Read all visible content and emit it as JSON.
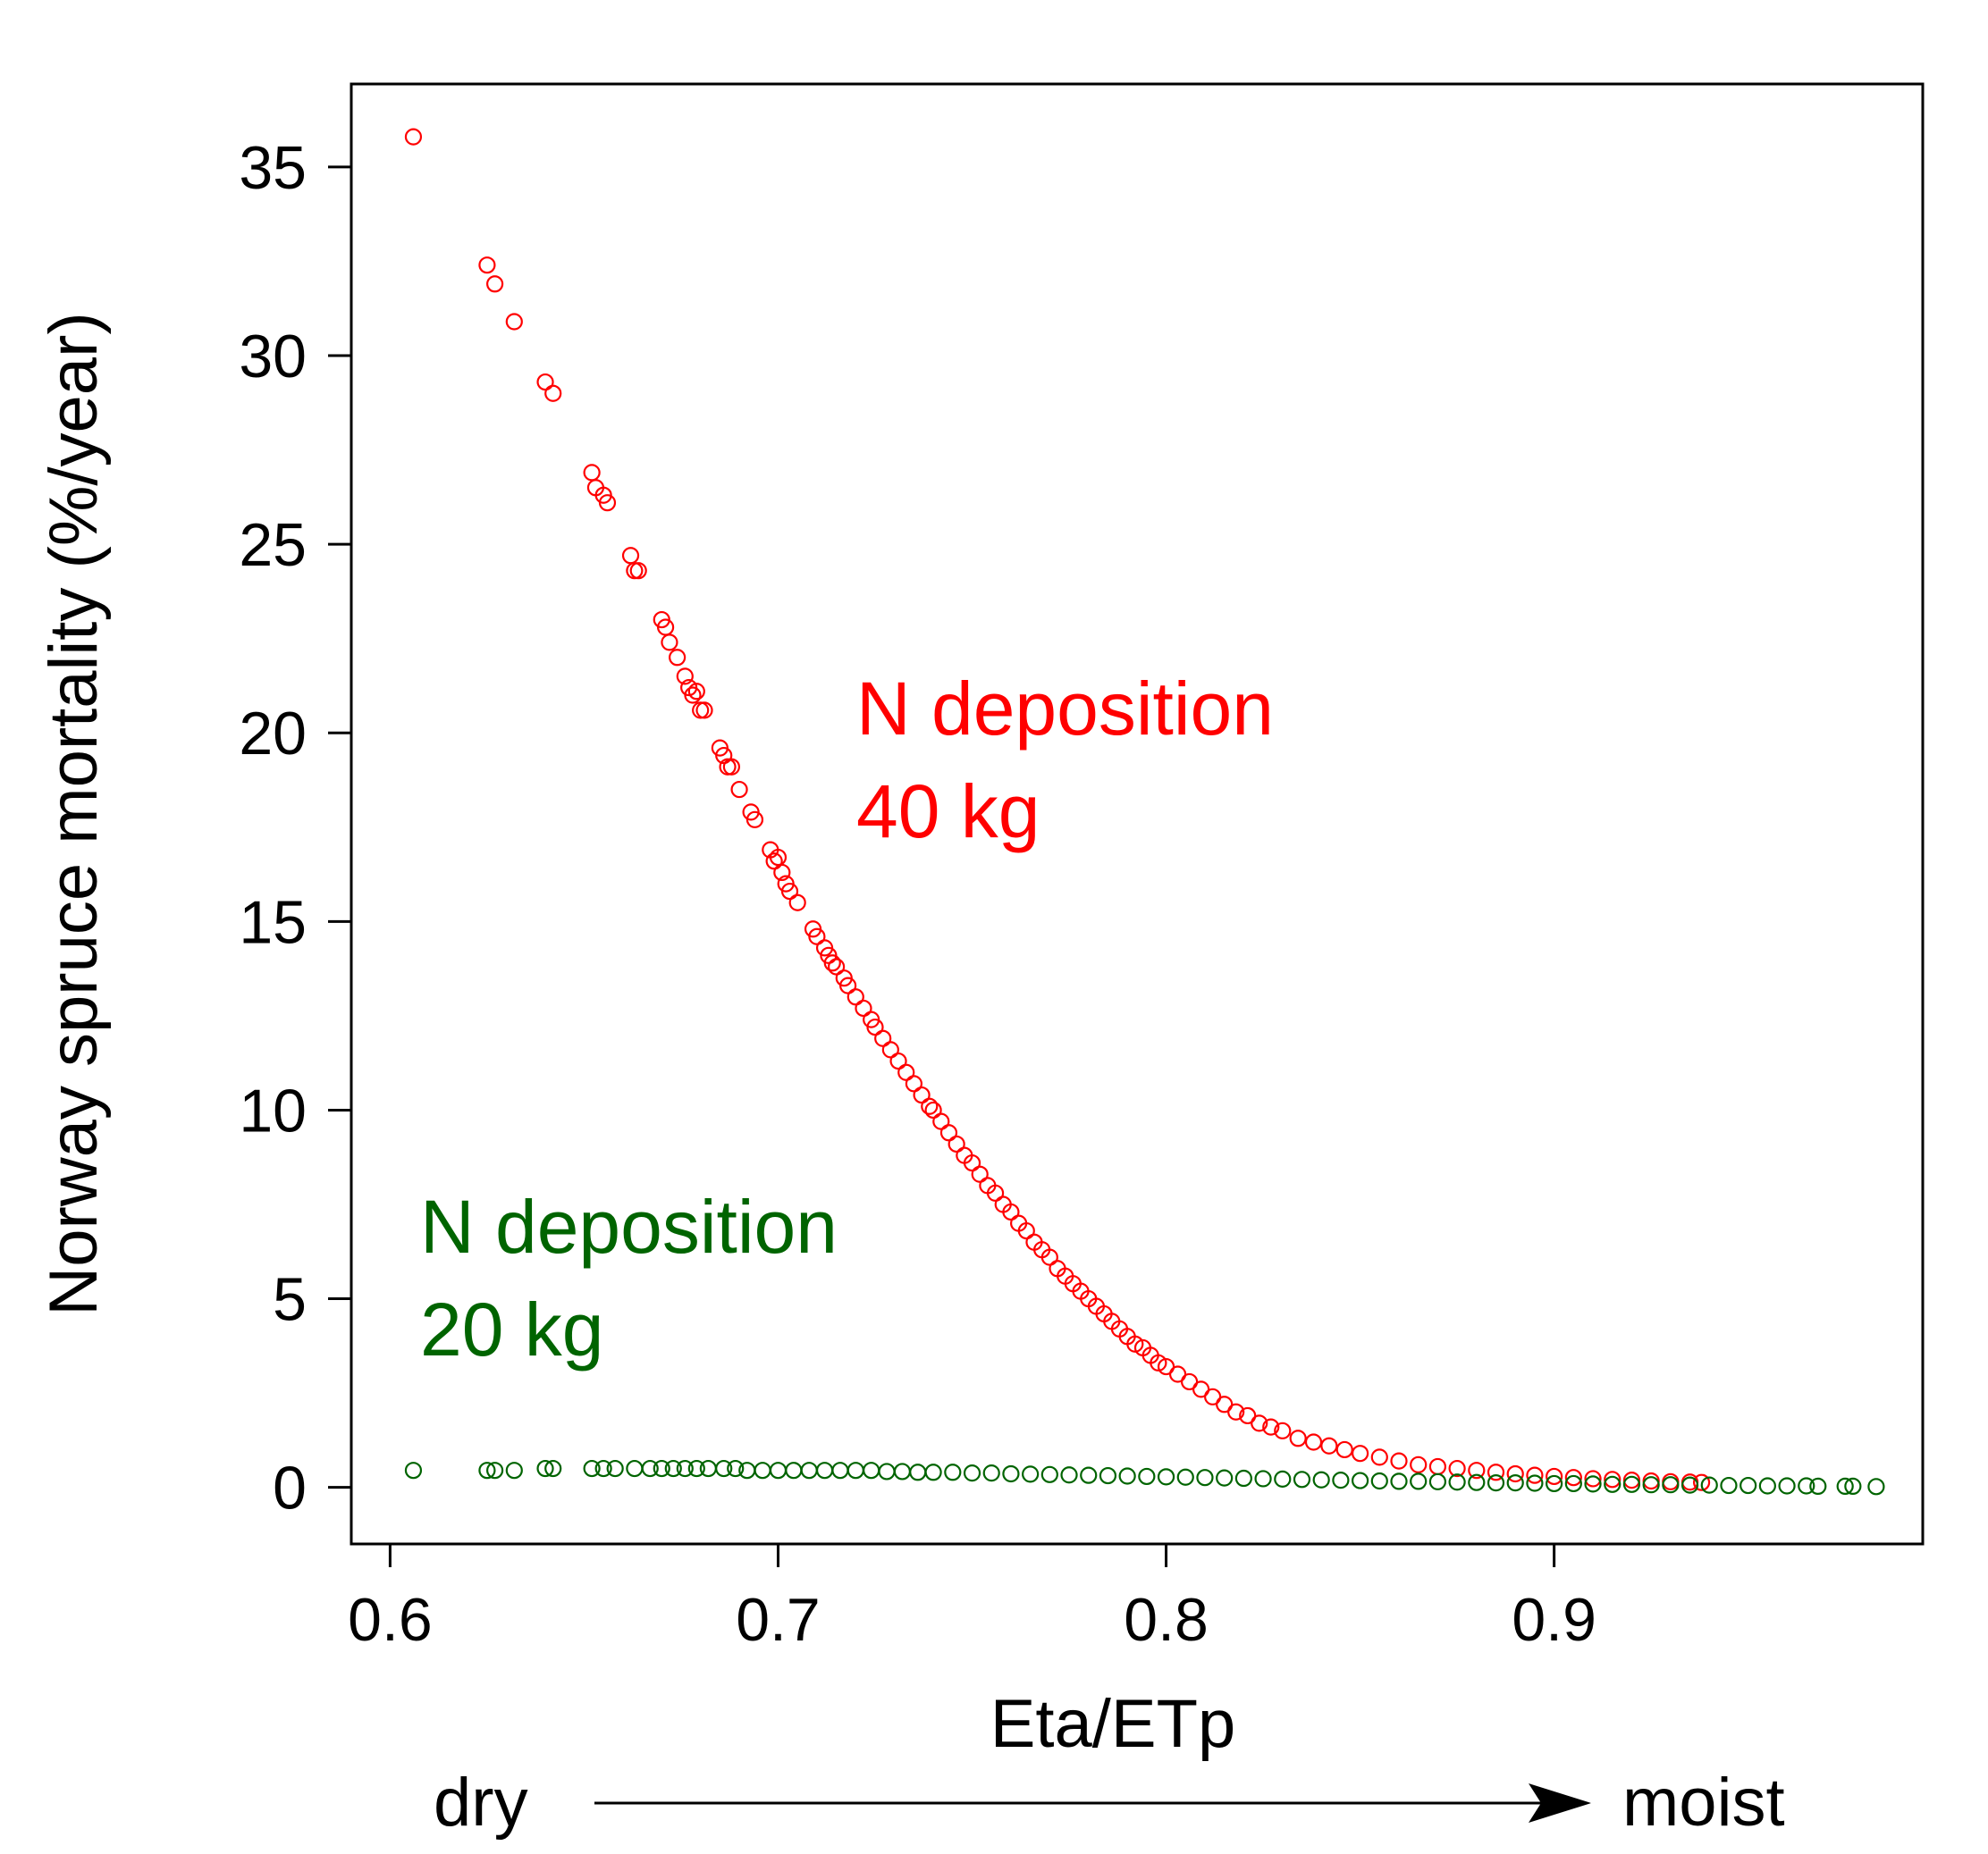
{
  "chart_data": {
    "type": "scatter",
    "xlabel": "Eta/ETp",
    "ylabel": "Norway spruce mortality (%/year)",
    "xlim": [
      0.59,
      0.995
    ],
    "ylim": [
      -1.5,
      37.2
    ],
    "x_ticks": [
      "0.6",
      "0.7",
      "0.8",
      "0.9"
    ],
    "x_tick_values": [
      0.6,
      0.7,
      0.8,
      0.9
    ],
    "y_ticks": [
      "0",
      "5",
      "10",
      "15",
      "20",
      "25",
      "30",
      "35"
    ],
    "y_tick_values": [
      0,
      5,
      10,
      15,
      20,
      25,
      30,
      35
    ],
    "grid": false,
    "legend": "none",
    "annotations": [
      {
        "text": "N deposition",
        "color": "#ff0000"
      },
      {
        "text": "40 kg",
        "color": "#ff0000"
      },
      {
        "text": "N deposition",
        "color": "#006400"
      },
      {
        "text": "20 kg",
        "color": "#006400"
      }
    ],
    "direction": {
      "left": "dry",
      "right": "moist"
    },
    "series": [
      {
        "color": "#ff0000",
        "points": [
          [
            0.606,
            35.8
          ],
          [
            0.625,
            32.4
          ],
          [
            0.627,
            31.9
          ],
          [
            0.632,
            30.9
          ],
          [
            0.64,
            29.3
          ],
          [
            0.642,
            29.0
          ],
          [
            0.652,
            26.9
          ],
          [
            0.653,
            26.5
          ],
          [
            0.655,
            26.3
          ],
          [
            0.656,
            26.1
          ],
          [
            0.662,
            24.7
          ],
          [
            0.663,
            24.3
          ],
          [
            0.664,
            24.3
          ],
          [
            0.67,
            23.0
          ],
          [
            0.671,
            22.8
          ],
          [
            0.672,
            22.4
          ],
          [
            0.674,
            22.0
          ],
          [
            0.676,
            21.5
          ],
          [
            0.677,
            21.2
          ],
          [
            0.678,
            21.0
          ],
          [
            0.679,
            21.1
          ],
          [
            0.68,
            20.6
          ],
          [
            0.681,
            20.6
          ],
          [
            0.685,
            19.6
          ],
          [
            0.686,
            19.4
          ],
          [
            0.687,
            19.1
          ],
          [
            0.688,
            19.1
          ],
          [
            0.69,
            18.5
          ],
          [
            0.693,
            17.9
          ],
          [
            0.694,
            17.7
          ],
          [
            0.698,
            16.9
          ],
          [
            0.699,
            16.6
          ],
          [
            0.7,
            16.7
          ],
          [
            0.701,
            16.3
          ],
          [
            0.702,
            16.0
          ],
          [
            0.703,
            15.8
          ],
          [
            0.705,
            15.5
          ],
          [
            0.709,
            14.8
          ],
          [
            0.71,
            14.6
          ],
          [
            0.712,
            14.3
          ],
          [
            0.713,
            14.1
          ],
          [
            0.714,
            13.9
          ],
          [
            0.715,
            13.8
          ],
          [
            0.717,
            13.5
          ],
          [
            0.718,
            13.3
          ],
          [
            0.72,
            13.0
          ],
          [
            0.722,
            12.7
          ],
          [
            0.724,
            12.4
          ],
          [
            0.725,
            12.2
          ],
          [
            0.727,
            11.9
          ],
          [
            0.729,
            11.6
          ],
          [
            0.731,
            11.3
          ],
          [
            0.733,
            11.0
          ],
          [
            0.735,
            10.7
          ],
          [
            0.737,
            10.4
          ],
          [
            0.739,
            10.1
          ],
          [
            0.74,
            10.0
          ],
          [
            0.742,
            9.7
          ],
          [
            0.744,
            9.4
          ],
          [
            0.746,
            9.1
          ],
          [
            0.748,
            8.8
          ],
          [
            0.75,
            8.6
          ],
          [
            0.752,
            8.3
          ],
          [
            0.754,
            8.0
          ],
          [
            0.756,
            7.8
          ],
          [
            0.758,
            7.5
          ],
          [
            0.76,
            7.3
          ],
          [
            0.762,
            7.0
          ],
          [
            0.764,
            6.8
          ],
          [
            0.766,
            6.5
          ],
          [
            0.768,
            6.3
          ],
          [
            0.77,
            6.1
          ],
          [
            0.772,
            5.8
          ],
          [
            0.774,
            5.6
          ],
          [
            0.776,
            5.4
          ],
          [
            0.778,
            5.2
          ],
          [
            0.78,
            5.0
          ],
          [
            0.782,
            4.8
          ],
          [
            0.784,
            4.6
          ],
          [
            0.786,
            4.4
          ],
          [
            0.788,
            4.2
          ],
          [
            0.79,
            4.0
          ],
          [
            0.792,
            3.8
          ],
          [
            0.794,
            3.7
          ],
          [
            0.796,
            3.5
          ],
          [
            0.798,
            3.3
          ],
          [
            0.8,
            3.2
          ],
          [
            0.803,
            3.0
          ],
          [
            0.806,
            2.8
          ],
          [
            0.809,
            2.6
          ],
          [
            0.812,
            2.4
          ],
          [
            0.815,
            2.2
          ],
          [
            0.818,
            2.0
          ],
          [
            0.821,
            1.9
          ],
          [
            0.824,
            1.7
          ],
          [
            0.827,
            1.6
          ],
          [
            0.83,
            1.5
          ],
          [
            0.834,
            1.3
          ],
          [
            0.838,
            1.2
          ],
          [
            0.842,
            1.1
          ],
          [
            0.846,
            1.0
          ],
          [
            0.85,
            0.9
          ],
          [
            0.855,
            0.8
          ],
          [
            0.86,
            0.7
          ],
          [
            0.865,
            0.6
          ],
          [
            0.87,
            0.55
          ],
          [
            0.875,
            0.5
          ],
          [
            0.88,
            0.45
          ],
          [
            0.885,
            0.4
          ],
          [
            0.89,
            0.36
          ],
          [
            0.895,
            0.32
          ],
          [
            0.9,
            0.29
          ],
          [
            0.905,
            0.26
          ],
          [
            0.91,
            0.23
          ],
          [
            0.915,
            0.21
          ],
          [
            0.92,
            0.19
          ],
          [
            0.925,
            0.17
          ],
          [
            0.93,
            0.15
          ],
          [
            0.935,
            0.14
          ],
          [
            0.938,
            0.13
          ]
        ]
      },
      {
        "color": "#006400",
        "points": [
          [
            0.606,
            0.45
          ],
          [
            0.625,
            0.45
          ],
          [
            0.627,
            0.45
          ],
          [
            0.632,
            0.45
          ],
          [
            0.64,
            0.5
          ],
          [
            0.642,
            0.5
          ],
          [
            0.652,
            0.5
          ],
          [
            0.655,
            0.5
          ],
          [
            0.658,
            0.5
          ],
          [
            0.663,
            0.5
          ],
          [
            0.667,
            0.5
          ],
          [
            0.67,
            0.5
          ],
          [
            0.673,
            0.5
          ],
          [
            0.676,
            0.5
          ],
          [
            0.679,
            0.5
          ],
          [
            0.682,
            0.5
          ],
          [
            0.686,
            0.5
          ],
          [
            0.689,
            0.5
          ],
          [
            0.692,
            0.45
          ],
          [
            0.696,
            0.45
          ],
          [
            0.7,
            0.45
          ],
          [
            0.704,
            0.45
          ],
          [
            0.708,
            0.45
          ],
          [
            0.712,
            0.45
          ],
          [
            0.716,
            0.45
          ],
          [
            0.72,
            0.45
          ],
          [
            0.724,
            0.45
          ],
          [
            0.728,
            0.42
          ],
          [
            0.732,
            0.42
          ],
          [
            0.736,
            0.4
          ],
          [
            0.74,
            0.4
          ],
          [
            0.745,
            0.4
          ],
          [
            0.75,
            0.38
          ],
          [
            0.755,
            0.38
          ],
          [
            0.76,
            0.36
          ],
          [
            0.765,
            0.35
          ],
          [
            0.77,
            0.34
          ],
          [
            0.775,
            0.33
          ],
          [
            0.78,
            0.32
          ],
          [
            0.785,
            0.31
          ],
          [
            0.79,
            0.3
          ],
          [
            0.795,
            0.29
          ],
          [
            0.8,
            0.28
          ],
          [
            0.805,
            0.27
          ],
          [
            0.81,
            0.26
          ],
          [
            0.815,
            0.25
          ],
          [
            0.82,
            0.24
          ],
          [
            0.825,
            0.23
          ],
          [
            0.83,
            0.22
          ],
          [
            0.835,
            0.21
          ],
          [
            0.84,
            0.2
          ],
          [
            0.845,
            0.19
          ],
          [
            0.85,
            0.18
          ],
          [
            0.855,
            0.17
          ],
          [
            0.86,
            0.16
          ],
          [
            0.865,
            0.16
          ],
          [
            0.87,
            0.15
          ],
          [
            0.875,
            0.14
          ],
          [
            0.88,
            0.13
          ],
          [
            0.885,
            0.12
          ],
          [
            0.89,
            0.12
          ],
          [
            0.895,
            0.11
          ],
          [
            0.9,
            0.1
          ],
          [
            0.905,
            0.1
          ],
          [
            0.91,
            0.09
          ],
          [
            0.915,
            0.08
          ],
          [
            0.92,
            0.08
          ],
          [
            0.925,
            0.07
          ],
          [
            0.93,
            0.07
          ],
          [
            0.935,
            0.06
          ],
          [
            0.94,
            0.06
          ],
          [
            0.945,
            0.05
          ],
          [
            0.95,
            0.05
          ],
          [
            0.955,
            0.04
          ],
          [
            0.96,
            0.04
          ],
          [
            0.965,
            0.04
          ],
          [
            0.968,
            0.03
          ],
          [
            0.975,
            0.03
          ],
          [
            0.977,
            0.03
          ],
          [
            0.983,
            0.02
          ]
        ]
      }
    ]
  }
}
